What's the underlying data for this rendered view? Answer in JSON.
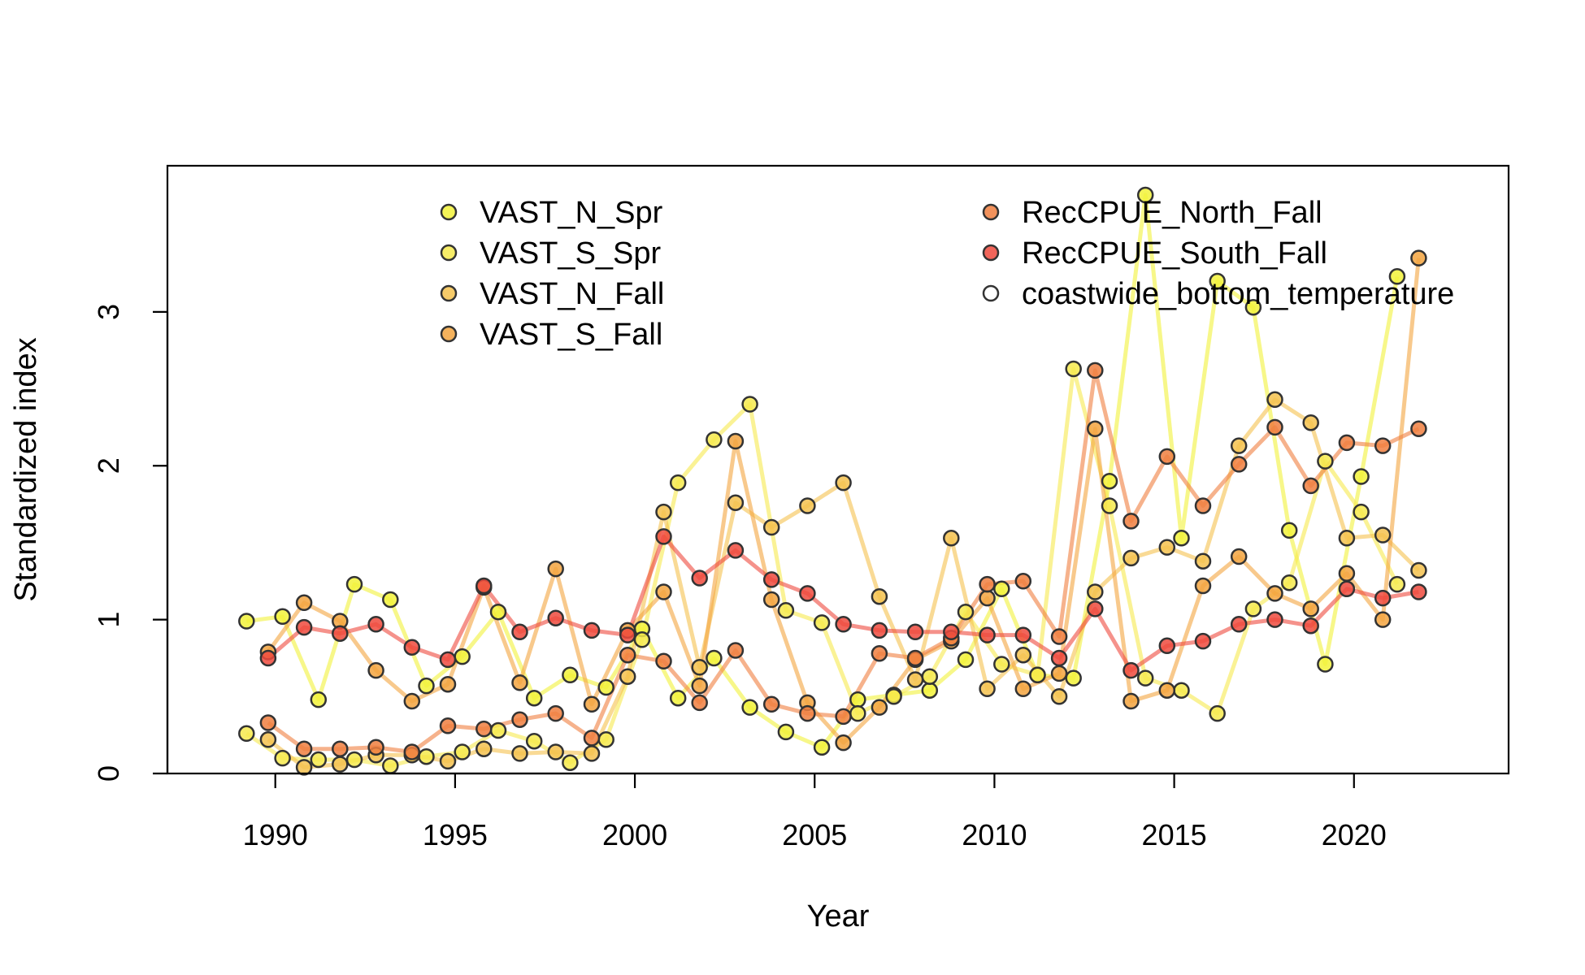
{
  "chart_data": {
    "type": "line",
    "xlabel": "Year",
    "ylabel": "Standardized index",
    "xlim": [
      1987,
      2024.3
    ],
    "ylim": [
      0,
      3.95
    ],
    "x_ticks": [
      1990,
      1995,
      2000,
      2005,
      2010,
      2015,
      2020
    ],
    "y_ticks": [
      0,
      1,
      2,
      3
    ],
    "grid": false,
    "legend": "top (two columns)",
    "series": [
      {
        "name": "VAST_N_Spr",
        "color": "#F2F23A",
        "x": [
          1989.2,
          1990.2,
          1991.2,
          1992.2,
          1993.2,
          1994.2,
          1995.2,
          1996.2,
          1997.2,
          1998.2,
          1999.2,
          2000.2,
          2001.2,
          2002.2,
          2003.2,
          2004.2,
          2005.2,
          2006.2,
          2007.2,
          2008.2,
          2009.2,
          2010.2,
          2011.2,
          2012.2,
          2013.2,
          2014.2,
          2015.2,
          2016.2,
          2017.2,
          2018.2,
          2019.2,
          2020.2,
          2021.2
        ],
        "y": [
          0.99,
          1.02,
          0.48,
          1.23,
          1.13,
          0.57,
          0.76,
          1.05,
          0.49,
          0.64,
          0.56,
          0.94,
          0.49,
          0.75,
          0.43,
          0.27,
          0.17,
          0.48,
          0.51,
          0.54,
          0.74,
          1.2,
          0.64,
          0.62,
          1.9,
          3.76,
          1.53,
          3.2,
          3.03,
          1.58,
          0.71,
          1.93,
          3.23
        ]
      },
      {
        "name": "VAST_S_Spr",
        "color": "#F6EA4E",
        "x": [
          1989.2,
          1990.2,
          1991.2,
          1992.2,
          1993.2,
          1994.2,
          1995.2,
          1996.2,
          1997.2,
          1998.2,
          1999.2,
          2000.2,
          2001.2,
          2002.2,
          2003.2,
          2004.2,
          2005.2,
          2006.2,
          2007.2,
          2008.2,
          2009.2,
          2010.2,
          2011.2,
          2012.2,
          2013.2,
          2014.2,
          2015.2,
          2016.2,
          2017.2,
          2018.2,
          2019.2,
          2020.2,
          2021.2
        ],
        "y": [
          0.26,
          0.1,
          0.09,
          0.09,
          0.05,
          0.11,
          0.14,
          0.28,
          0.21,
          0.07,
          0.22,
          0.87,
          1.89,
          2.17,
          2.4,
          1.06,
          0.98,
          0.39,
          0.5,
          0.63,
          1.05,
          0.71,
          0.64,
          2.63,
          1.74,
          0.62,
          0.54,
          0.39,
          1.07,
          1.24,
          2.03,
          1.7,
          1.23
        ]
      },
      {
        "name": "VAST_N_Fall",
        "color": "#F5C24F",
        "x": [
          1989.8,
          1990.8,
          1991.8,
          1992.8,
          1993.8,
          1994.8,
          1995.8,
          1996.8,
          1997.8,
          1998.8,
          1999.8,
          2000.8,
          2001.8,
          2002.8,
          2003.8,
          2004.8,
          2005.8,
          2006.8,
          2007.8,
          2008.8,
          2009.8,
          2010.8,
          2011.8,
          2012.8,
          2013.8,
          2014.8,
          2015.8,
          2016.8,
          2017.8,
          2018.8,
          2019.8,
          2020.8,
          2021.8
        ],
        "y": [
          0.22,
          0.04,
          0.06,
          0.12,
          0.12,
          0.08,
          0.16,
          0.13,
          0.14,
          0.13,
          0.63,
          1.7,
          0.69,
          1.76,
          1.6,
          1.74,
          1.89,
          1.15,
          0.61,
          1.53,
          0.55,
          0.77,
          0.5,
          1.18,
          1.4,
          1.47,
          1.38,
          2.13,
          2.43,
          2.28,
          1.53,
          1.55,
          1.32
        ]
      },
      {
        "name": "VAST_S_Fall",
        "color": "#F3A53F",
        "x": [
          1989.8,
          1990.8,
          1991.8,
          1992.8,
          1993.8,
          1994.8,
          1995.8,
          1996.8,
          1997.8,
          1998.8,
          1999.8,
          2000.8,
          2001.8,
          2002.8,
          2003.8,
          2004.8,
          2005.8,
          2006.8,
          2007.8,
          2008.8,
          2009.8,
          2010.8,
          2011.8,
          2012.8,
          2013.8,
          2014.8,
          2015.8,
          2016.8,
          2017.8,
          2018.8,
          2019.8,
          2020.8,
          2021.8
        ],
        "y": [
          0.79,
          1.11,
          0.99,
          0.67,
          0.47,
          0.58,
          1.21,
          0.59,
          1.33,
          0.45,
          0.93,
          1.18,
          0.57,
          2.16,
          1.13,
          0.46,
          0.2,
          0.43,
          0.74,
          0.86,
          1.14,
          0.55,
          0.65,
          2.24,
          0.47,
          0.54,
          1.22,
          1.41,
          1.17,
          1.07,
          1.3,
          1.0,
          3.35
        ]
      },
      {
        "name": "RecCPUE_North_Fall",
        "color": "#F07F3F",
        "x": [
          1989.8,
          1990.8,
          1991.8,
          1992.8,
          1993.8,
          1994.8,
          1995.8,
          1996.8,
          1997.8,
          1998.8,
          1999.8,
          2000.8,
          2001.8,
          2002.8,
          2003.8,
          2004.8,
          2005.8,
          2006.8,
          2007.8,
          2008.8,
          2009.8,
          2010.8,
          2011.8,
          2012.8,
          2013.8,
          2014.8,
          2015.8,
          2016.8,
          2017.8,
          2018.8,
          2019.8,
          2020.8,
          2021.8
        ],
        "y": [
          0.33,
          0.16,
          0.16,
          0.17,
          0.14,
          0.31,
          0.29,
          0.35,
          0.39,
          0.23,
          0.77,
          0.73,
          0.46,
          0.8,
          0.45,
          0.39,
          0.37,
          0.78,
          0.75,
          0.88,
          1.23,
          1.25,
          0.89,
          2.62,
          1.64,
          2.06,
          1.74,
          2.01,
          2.25,
          1.87,
          2.15,
          2.13,
          2.24
        ]
      },
      {
        "name": "RecCPUE_South_Fall",
        "color": "#EE4A3D",
        "x": [
          1989.8,
          1990.8,
          1991.8,
          1992.8,
          1993.8,
          1994.8,
          1995.8,
          1996.8,
          1997.8,
          1998.8,
          1999.8,
          2000.8,
          2001.8,
          2002.8,
          2003.8,
          2004.8,
          2005.8,
          2006.8,
          2007.8,
          2008.8,
          2009.8,
          2010.8,
          2011.8,
          2012.8,
          2013.8,
          2014.8,
          2015.8,
          2016.8,
          2017.8,
          2018.8,
          2019.8,
          2020.8,
          2021.8
        ],
        "y": [
          0.75,
          0.95,
          0.91,
          0.97,
          0.82,
          0.74,
          1.22,
          0.92,
          1.01,
          0.93,
          0.9,
          1.54,
          1.27,
          1.45,
          1.26,
          1.17,
          0.97,
          0.93,
          0.92,
          0.92,
          0.9,
          0.9,
          0.75,
          1.07,
          0.67,
          0.83,
          0.86,
          0.97,
          1.0,
          0.96,
          1.2,
          1.14,
          1.18
        ]
      },
      {
        "name": "coastwide_bottom_temperature",
        "color": "#FFFFFF",
        "x": [],
        "y": []
      }
    ]
  }
}
